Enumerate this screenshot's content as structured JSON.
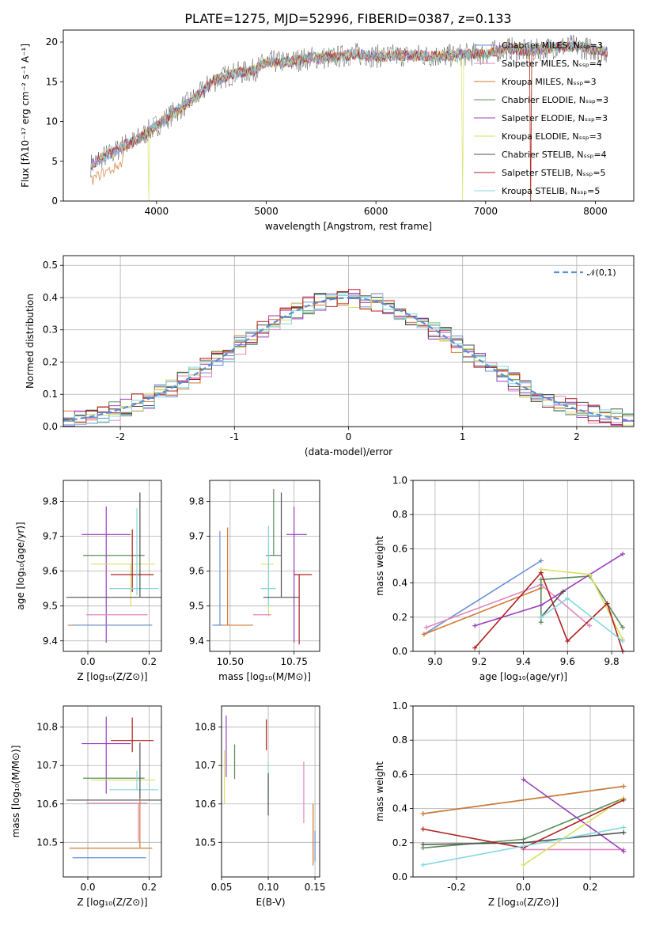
{
  "title": "PLATE=1275, MJD=52996, FIBERID=0387, z=0.133",
  "chart_data": [
    {
      "type": "line",
      "panel": "spectrum",
      "xlabel": "wavelength [Angstrom, rest frame]",
      "ylabel": "Flux [fλ10⁻¹⁷ erg cm⁻² s⁻¹ A⁻¹]",
      "xlim": [
        3150,
        8350
      ],
      "ylim": [
        0,
        21.5
      ],
      "xticks": [
        4000,
        5000,
        6000,
        7000,
        8000
      ],
      "yticks": [
        0,
        5,
        10,
        15,
        20
      ],
      "legend_position": "upper right",
      "series": [
        {
          "name": "Chabrier MILES, Nₛₛₚ=3",
          "color": "#6a8fd6"
        },
        {
          "name": "Salpeter MILES, Nₛₛₚ=4",
          "color": "#e088c0"
        },
        {
          "name": "Kroupa MILES, Nₛₛₚ=3",
          "color": "#d07a30"
        },
        {
          "name": "Chabrier ELODIE, Nₛₛₚ=3",
          "color": "#5b8c5a"
        },
        {
          "name": "Salpeter ELODIE, Nₛₛₚ=3",
          "color": "#9a3fbf"
        },
        {
          "name": "Kroupa ELODIE, Nₛₛₚ=3",
          "color": "#d8e060"
        },
        {
          "name": "Chabrier STELIB, Nₛₛₚ=4",
          "color": "#505050"
        },
        {
          "name": "Salpeter STELIB, Nₛₛₚ=5",
          "color": "#b02020"
        },
        {
          "name": "Kroupa STELIB, Nₛₛₚ=5",
          "color": "#80d8e0"
        }
      ],
      "x": [
        3400,
        3500,
        3600,
        3700,
        3800,
        3900,
        4000,
        4100,
        4200,
        4300,
        4400,
        4500,
        4600,
        4700,
        4800,
        4900,
        5000,
        5200,
        5400,
        5600,
        5800,
        6000,
        6200,
        6400,
        6600,
        6800,
        7000,
        7200,
        7400,
        7600,
        7800,
        8000,
        8100
      ],
      "y": [
        4.5,
        5.5,
        6,
        7,
        7.5,
        8.5,
        9.5,
        10.5,
        11.5,
        12.5,
        13.5,
        15,
        15.5,
        16,
        16.2,
        16.5,
        17.5,
        17.5,
        18,
        18,
        18.5,
        18.2,
        18.3,
        18.3,
        18.2,
        18.4,
        18.5,
        19.2,
        18.8,
        19.3,
        19.5,
        19,
        18.8
      ]
    },
    {
      "type": "line",
      "panel": "residual histogram",
      "xlabel": "(data-model)/error",
      "ylabel": "Normed distribution",
      "xlim": [
        -2.5,
        2.5
      ],
      "ylim": [
        0,
        0.53
      ],
      "xticks": [
        -2,
        -1,
        0,
        1,
        2
      ],
      "yticks": [
        0.0,
        0.1,
        0.2,
        0.3,
        0.4,
        0.5
      ],
      "grid": true,
      "legend": [
        "𝒩(0,1)"
      ],
      "legend_position": "upper right"
    },
    {
      "type": "scatter",
      "panel": "age vs Z",
      "xlabel": "Z [log₁₀(Z/Z⊙)]",
      "ylabel": "age  [log₁₀(age/yr)]",
      "xlim": [
        -0.08,
        0.24
      ],
      "ylim": [
        9.37,
        9.86
      ],
      "xticks": [
        0.0,
        0.2
      ],
      "yticks": [
        9.4,
        9.5,
        9.6,
        9.7,
        9.8
      ],
      "grid": true,
      "points": [
        {
          "x": 0.06,
          "y": 9.705,
          "xerr": [
            0.08,
            0.08
          ],
          "yerr": [
            0.31,
            0.08
          ],
          "color": "#9a3fbf"
        },
        {
          "x": 0.085,
          "y": 9.645,
          "xerr": [
            0.1,
            0.1
          ],
          "yerr": [
            0.0,
            0.0
          ],
          "color": "#5b8c5a"
        },
        {
          "x": 0.14,
          "y": 9.62,
          "xerr": [
            0.13,
            0.08
          ],
          "yerr": [
            0.12,
            0.0
          ],
          "color": "#d8e060"
        },
        {
          "x": 0.145,
          "y": 9.59,
          "xerr": [
            0.07,
            0.07
          ],
          "yerr": [
            0.05,
            0.13
          ],
          "color": "#b02020"
        },
        {
          "x": 0.16,
          "y": 9.55,
          "xerr": [
            0.09,
            0.07
          ],
          "yerr": [
            0.02,
            0.23
          ],
          "color": "#80d8e0"
        },
        {
          "x": 0.17,
          "y": 9.525,
          "xerr": [
            0.24,
            0.07
          ],
          "yerr": [
            0.0,
            0.3
          ],
          "color": "#505050"
        },
        {
          "x": 0.165,
          "y": 9.475,
          "xerr": [
            0.17,
            0.03
          ],
          "yerr": [
            0.0,
            0.0
          ],
          "color": "#e088c0"
        },
        {
          "x": 0.165,
          "y": 9.445,
          "xerr": [
            0.23,
            0.04
          ],
          "yerr": [
            0.0,
            0.0
          ],
          "color": "#d07a30"
        },
        {
          "x": 0.17,
          "y": 9.445,
          "xerr": [
            0.22,
            0.04
          ],
          "yerr": [
            0.0,
            0.0
          ],
          "color": "#6a8fd6"
        }
      ]
    },
    {
      "type": "scatter",
      "panel": "age vs mass",
      "xlabel": "mass [log₁₀(M/M⊙)]",
      "ylabel": "",
      "xlim": [
        10.42,
        10.85
      ],
      "ylim": [
        9.37,
        9.86
      ],
      "xticks": [
        10.5,
        10.75
      ],
      "yticks": [
        9.4,
        9.5,
        9.6,
        9.7,
        9.8
      ],
      "grid": true
    },
    {
      "type": "line",
      "panel": "mass weight vs age",
      "xlabel": "age  [log₁₀(age/yr)]",
      "ylabel": "mass weight",
      "xlim": [
        8.9,
        9.9
      ],
      "ylim": [
        0,
        1
      ],
      "xticks": [
        9.0,
        9.2,
        9.4,
        9.6,
        9.8
      ],
      "yticks": [
        0.0,
        0.2,
        0.4,
        0.6,
        0.8,
        1.0
      ],
      "grid": true
    },
    {
      "type": "scatter",
      "panel": "mass vs Z",
      "xlabel": "Z [log₁₀(Z/Z⊙)]",
      "ylabel": "mass [log₁₀(M/M⊙)]",
      "xlim": [
        -0.08,
        0.24
      ],
      "ylim": [
        10.41,
        10.855
      ],
      "xticks": [
        0.0,
        0.2
      ],
      "yticks": [
        10.5,
        10.6,
        10.7,
        10.8
      ],
      "grid": true
    },
    {
      "type": "scatter",
      "panel": "mass vs E(B-V)",
      "xlabel": "E(B-V)",
      "ylabel": "",
      "xlim": [
        0.05,
        0.155
      ],
      "ylim": [
        10.41,
        10.855
      ],
      "xticks": [
        0.05,
        0.1,
        0.15
      ],
      "yticks": [
        10.5,
        10.6,
        10.7,
        10.8
      ],
      "grid": true
    },
    {
      "type": "line",
      "panel": "mass weight vs Z",
      "xlabel": "Z [log₁₀(Z/Z⊙)]",
      "ylabel": "mass weight",
      "xlim": [
        -0.33,
        0.33
      ],
      "ylim": [
        0,
        1
      ],
      "xticks": [
        -0.2,
        0.0,
        0.2
      ],
      "yticks": [
        0.0,
        0.2,
        0.4,
        0.6,
        0.8,
        1.0
      ],
      "grid": true
    }
  ]
}
